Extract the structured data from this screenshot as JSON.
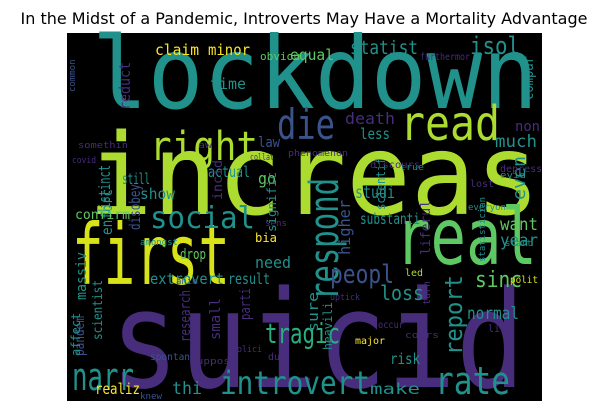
{
  "title": "In the Midst of a Pandemic, Introverts May Have a Mortality Advantage",
  "words": [
    "lockdown",
    "increas",
    "suicid",
    "first",
    "real",
    "read",
    "right",
    "die",
    "respond",
    "social",
    "peopl",
    "narr",
    "introvert",
    "rate",
    "tragic",
    "report",
    "sinc",
    "loss",
    "normal",
    "year",
    "want",
    "even",
    "much",
    "non",
    "isol",
    "statist",
    "claim",
    "minor",
    "equal",
    "furthermor",
    "obviou",
    "reduct",
    "compar",
    "distinct",
    "still",
    "show",
    "law",
    "actual",
    "time",
    "enforc",
    "disobey",
    "death",
    "less",
    "scientif",
    "go",
    "incid",
    "signific",
    "substanti",
    "studi",
    "higher",
    "liferul",
    "need",
    "drop",
    "bia",
    "confirm",
    "massiv",
    "pandem",
    "scientist",
    "extrovert",
    "result",
    "parti",
    "small",
    "research",
    "sure",
    "heavili",
    "risk",
    "make",
    "realiz",
    "thi",
    "affect",
    "spontan",
    "led",
    "turn",
    "polit",
    "live",
    "start",
    "evid",
    "lost",
    "true",
    "depress",
    "everyon",
    "discours",
    "phenomenon",
    "common",
    "covid",
    "somethin",
    "amongst",
    "knew",
    "major",
    "occur",
    "due",
    "polici",
    "suppos",
    "uptick",
    "statistician",
    "cours",
    "anim",
    "sens",
    "collat",
    "aw"
  ]
}
